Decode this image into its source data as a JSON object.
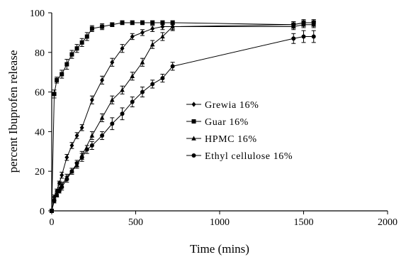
{
  "chart_data": {
    "type": "line",
    "title": "",
    "xlabel": "Time  (mins)",
    "ylabel": "percent Ibuprofen  release",
    "xlim": [
      0,
      2000
    ],
    "ylim": [
      0,
      100
    ],
    "x_ticks": [
      "0",
      "500",
      "1000",
      "1500",
      "2000"
    ],
    "y_ticks": [
      "0",
      "20",
      "40",
      "60",
      "80",
      "100"
    ],
    "legend_position": "center-right",
    "grid": false,
    "series": [
      {
        "name": "Grewia 16%",
        "marker": "diamond",
        "x": [
          0,
          15,
          30,
          45,
          60,
          90,
          120,
          150,
          180,
          240,
          300,
          360,
          420,
          480,
          540,
          600,
          660,
          720,
          1440,
          1500,
          1560
        ],
        "y": [
          0,
          7,
          10,
          14,
          18,
          27,
          33,
          38,
          42,
          56,
          66,
          75,
          82,
          88,
          90,
          92,
          93,
          93,
          94,
          95,
          95
        ],
        "err": [
          0.5,
          1,
          1,
          1,
          1.5,
          1.5,
          1.5,
          1.5,
          1.5,
          2,
          2,
          2,
          2,
          1.5,
          1.5,
          1.5,
          1.5,
          1.5,
          1.5,
          1.5,
          1.5
        ]
      },
      {
        "name": "Guar 16%",
        "marker": "square",
        "x": [
          0,
          15,
          30,
          60,
          90,
          120,
          150,
          180,
          210,
          240,
          300,
          360,
          420,
          480,
          540,
          600,
          660,
          720,
          1440,
          1500,
          1560
        ],
        "y": [
          0,
          59,
          66,
          69,
          74,
          79,
          82,
          85,
          88,
          92,
          93,
          94,
          95,
          95,
          95,
          95,
          95,
          95,
          94,
          95,
          95
        ],
        "err": [
          0.5,
          2,
          1.5,
          2,
          2.5,
          2,
          2,
          2,
          2,
          1.5,
          1.5,
          1,
          1,
          1,
          1,
          1,
          1,
          1,
          1.5,
          1.5,
          1.5
        ]
      },
      {
        "name": "HPMC 16%",
        "marker": "triangle",
        "x": [
          0,
          15,
          30,
          45,
          60,
          90,
          120,
          150,
          180,
          240,
          300,
          360,
          420,
          480,
          540,
          600,
          660,
          720,
          1440,
          1500,
          1560
        ],
        "y": [
          0,
          6,
          8,
          11,
          13,
          17,
          20,
          23,
          28,
          38,
          47,
          56,
          61,
          68,
          75,
          84,
          88,
          93,
          93,
          94,
          94
        ],
        "err": [
          0.5,
          1,
          1,
          1,
          1.5,
          1.5,
          1.5,
          1.5,
          2,
          2,
          2,
          2,
          2,
          2,
          2,
          2,
          2,
          2,
          1.5,
          1.5,
          1.5
        ]
      },
      {
        "name": "Ethyl cellulose 16%",
        "marker": "circle",
        "x": [
          0,
          15,
          30,
          45,
          60,
          90,
          120,
          150,
          180,
          210,
          240,
          300,
          360,
          420,
          480,
          540,
          600,
          660,
          720,
          1440,
          1500,
          1560
        ],
        "y": [
          0,
          5,
          8,
          10,
          12,
          16,
          20,
          24,
          27,
          31,
          33,
          38,
          44,
          49,
          55,
          60,
          64,
          67,
          73,
          87,
          88,
          88
        ],
        "err": [
          0.5,
          1,
          1,
          1,
          1.5,
          1.5,
          1.5,
          1.5,
          2,
          2,
          2,
          2,
          3,
          3,
          2.5,
          2.5,
          2,
          2,
          2,
          2.5,
          3,
          3
        ]
      }
    ]
  }
}
